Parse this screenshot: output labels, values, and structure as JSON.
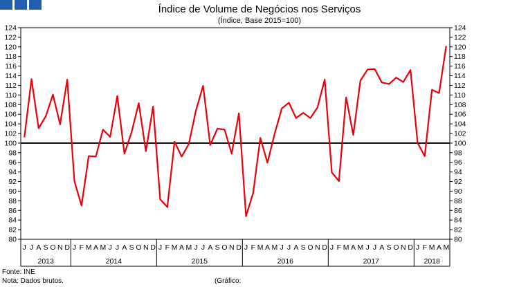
{
  "logo": {
    "color": "#1f5fae"
  },
  "chart_data": {
    "type": "line",
    "title": "Índice de Volume de Negócios nos Serviços",
    "subtitle": "(Índice, Base 2015=100)",
    "ylim": [
      80,
      124
    ],
    "ystep": 2,
    "y_ticks_both_sides": true,
    "reference_line": 100,
    "line_color": "#e8000b",
    "month_labels": [
      "J",
      "F",
      "M",
      "A",
      "M",
      "J",
      "J",
      "A",
      "S",
      "O",
      "N",
      "D"
    ],
    "start_month_index": 5,
    "years": [
      {
        "label": "2013",
        "months": 7
      },
      {
        "label": "2014",
        "months": 12
      },
      {
        "label": "2015",
        "months": 12
      },
      {
        "label": "2016",
        "months": 12
      },
      {
        "label": "2017",
        "months": 12
      },
      {
        "label": "2018",
        "months": 5
      }
    ],
    "series": [
      {
        "values": [
          101.2,
          113.3,
          103.1,
          105.6,
          110.1,
          103.9,
          113.2,
          92.1,
          87.0,
          97.3,
          97.2,
          102.8,
          101.3,
          109.8,
          97.8,
          102.3,
          108.3,
          98.3,
          107.6,
          88.3,
          86.7,
          100.3,
          97.2,
          99.8,
          106.8,
          111.9,
          99.6,
          103.0,
          102.8,
          97.8,
          106.2,
          84.8,
          89.6,
          101.1,
          95.9,
          101.9,
          107.2,
          108.4,
          105.2,
          106.3,
          105.2,
          107.4,
          113.2,
          93.9,
          92.1,
          109.5,
          101.7,
          113.0,
          115.3,
          115.4,
          112.6,
          112.3,
          113.6,
          112.7,
          115.2,
          100.0,
          97.3,
          111.1,
          110.4,
          120.2
        ]
      }
    ]
  },
  "footer": {
    "source": "Fonte: INE",
    "note": "Nota: Dados brutos.",
    "graphic": "(Gráfico:"
  }
}
